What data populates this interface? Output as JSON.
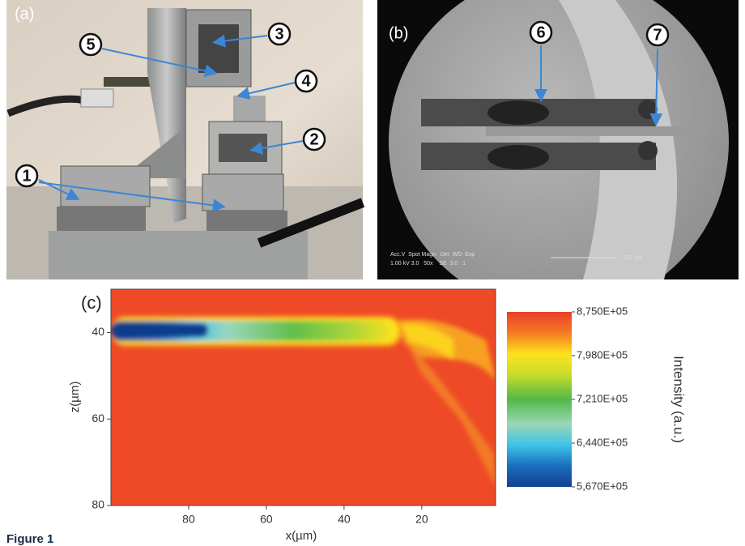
{
  "figure_label": "Figure 1",
  "panel_a": {
    "label": "(a)",
    "markers": [
      "1",
      "2",
      "3",
      "4",
      "5"
    ]
  },
  "panel_b": {
    "label": "(b)",
    "markers": [
      "6",
      "7"
    ],
    "sem_info": {
      "header": "Acc.V  Spot Magn   Det  WD  Exp",
      "values": "1.00 kV 3.0   50x    SE  3.0   1",
      "scale_bar": "500 µm"
    }
  },
  "panel_c": {
    "label": "(c)",
    "xlabel": "x(µm)",
    "ylabel": "z(µm)",
    "colorbar_label": "Intensity (a.u.)",
    "xlim": [
      100,
      1
    ],
    "xticks": [
      80,
      60,
      40,
      20
    ],
    "ylim": [
      30,
      80
    ],
    "yticks": [
      40,
      60,
      80
    ],
    "colorbar_lim": [
      567000,
      875000
    ],
    "colorbar_ticks": [
      {
        "value": 875000,
        "label": "8,750E+05"
      },
      {
        "value": 798000,
        "label": "7,980E+05"
      },
      {
        "value": 721000,
        "label": "7,210E+05"
      },
      {
        "value": 644000,
        "label": "6,440E+05"
      },
      {
        "value": 567000,
        "label": "5,670E+05"
      }
    ]
  }
}
